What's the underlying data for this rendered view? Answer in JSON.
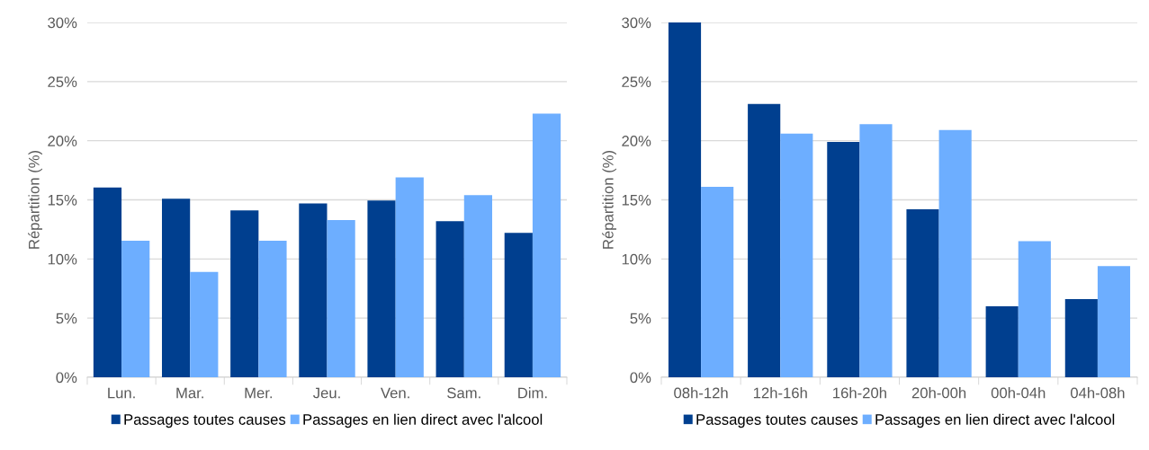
{
  "chart_data": [
    {
      "type": "bar",
      "ylabel": "Répartition (%)",
      "categories": [
        "Lun.",
        "Mar.",
        "Mer.",
        "Jeu.",
        "Ven.",
        "Sam.",
        "Dim."
      ],
      "series": [
        {
          "name": "Passages toutes causes",
          "color": "#003f8f",
          "values": [
            16.05,
            15.1,
            14.1,
            14.7,
            14.95,
            13.2,
            12.2
          ]
        },
        {
          "name": "Passages en lien direct avec l'alcool",
          "color": "#6daeff",
          "values": [
            11.55,
            8.9,
            11.55,
            13.3,
            16.9,
            15.4,
            22.3
          ]
        }
      ],
      "ylim": [
        0,
        30
      ],
      "yticks": [
        {
          "value": 0,
          "label": "0%"
        },
        {
          "value": 5,
          "label": "5%"
        },
        {
          "value": 10,
          "label": "10%"
        },
        {
          "value": 15,
          "label": "15%"
        },
        {
          "value": 20,
          "label": "20%"
        },
        {
          "value": 25,
          "label": "25%"
        },
        {
          "value": 30,
          "label": "30%"
        }
      ],
      "grid": "y",
      "legend": "bottom"
    },
    {
      "type": "bar",
      "ylabel": "Répartition (%)",
      "categories": [
        "08h-12h",
        "12h-16h",
        "16h-20h",
        "20h-00h",
        "00h-04h",
        "04h-08h"
      ],
      "series": [
        {
          "name": "Passages toutes causes",
          "color": "#003f8f",
          "values": [
            30,
            23.1,
            19.9,
            14.2,
            6.0,
            6.6
          ]
        },
        {
          "name": "Passages en lien direct avec l'alcool",
          "color": "#6daeff",
          "values": [
            16.1,
            20.6,
            21.4,
            20.9,
            11.5,
            9.4
          ]
        }
      ],
      "ylim": [
        0,
        30
      ],
      "yticks": [
        {
          "value": 0,
          "label": "0%"
        },
        {
          "value": 5,
          "label": "5%"
        },
        {
          "value": 10,
          "label": "10%"
        },
        {
          "value": 15,
          "label": "15%"
        },
        {
          "value": 20,
          "label": "20%"
        },
        {
          "value": 25,
          "label": "25%"
        },
        {
          "value": 30,
          "label": "30%"
        }
      ],
      "grid": "y",
      "legend": "bottom"
    }
  ]
}
